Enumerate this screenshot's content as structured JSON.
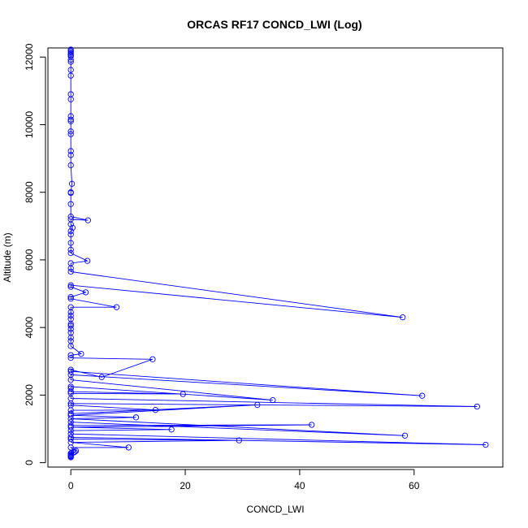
{
  "chart_data": {
    "type": "line",
    "title": "ORCAS RF17 CONCD_LWI (Log)",
    "xlabel": "CONCD_LWI",
    "ylabel": "Altitude (m)",
    "xlim": [
      -4,
      75.5
    ],
    "ylim": [
      -130,
      12270
    ],
    "xticks": [
      0,
      20,
      40,
      60
    ],
    "yticks": [
      0,
      2000,
      4000,
      6000,
      8000,
      10000,
      12000
    ],
    "grid": false,
    "legend": "none",
    "marker": "open-circle",
    "series": [
      {
        "color": "#0000ff",
        "points": [
          {
            "x": 0,
            "y": 12220
          },
          {
            "x": 0,
            "y": 12180
          },
          {
            "x": 0,
            "y": 12140
          },
          {
            "x": 0,
            "y": 12100
          },
          {
            "x": 0,
            "y": 12060
          },
          {
            "x": 0,
            "y": 12020
          },
          {
            "x": 0,
            "y": 11920
          },
          {
            "x": 0,
            "y": 11860
          },
          {
            "x": 0,
            "y": 11620
          },
          {
            "x": 0,
            "y": 11450
          },
          {
            "x": 0,
            "y": 10900
          },
          {
            "x": 0,
            "y": 10750
          },
          {
            "x": 0,
            "y": 10250
          },
          {
            "x": 0,
            "y": 10150
          },
          {
            "x": 0,
            "y": 10100
          },
          {
            "x": 0,
            "y": 9800
          },
          {
            "x": 0,
            "y": 9720
          },
          {
            "x": 0,
            "y": 9220
          },
          {
            "x": 0,
            "y": 9100
          },
          {
            "x": 0,
            "y": 8800
          },
          {
            "x": 0.2,
            "y": 8250
          },
          {
            "x": 0,
            "y": 8000
          },
          {
            "x": 0,
            "y": 7980
          },
          {
            "x": 0,
            "y": 7650
          },
          {
            "x": 0,
            "y": 7280
          },
          {
            "x": 3.0,
            "y": 7170
          },
          {
            "x": 0,
            "y": 7200
          },
          {
            "x": 0,
            "y": 7050
          },
          {
            "x": 0.3,
            "y": 6950
          },
          {
            "x": 0,
            "y": 6850
          },
          {
            "x": 0,
            "y": 6750
          },
          {
            "x": 0,
            "y": 6500
          },
          {
            "x": 0,
            "y": 6300
          },
          {
            "x": 0,
            "y": 6200
          },
          {
            "x": 2.9,
            "y": 5970
          },
          {
            "x": 0,
            "y": 5900
          },
          {
            "x": 0,
            "y": 5750
          },
          {
            "x": 0,
            "y": 5650
          },
          {
            "x": 58,
            "y": 4300
          },
          {
            "x": 0,
            "y": 5250
          },
          {
            "x": 0,
            "y": 5200
          },
          {
            "x": 2.6,
            "y": 5040
          },
          {
            "x": 0,
            "y": 4900
          },
          {
            "x": 0,
            "y": 4850
          },
          {
            "x": 8.0,
            "y": 4600
          },
          {
            "x": 0,
            "y": 4600
          },
          {
            "x": 0,
            "y": 4450
          },
          {
            "x": 0,
            "y": 4350
          },
          {
            "x": 0,
            "y": 4250
          },
          {
            "x": 0,
            "y": 4100
          },
          {
            "x": 0,
            "y": 4050
          },
          {
            "x": 0,
            "y": 3950
          },
          {
            "x": 0,
            "y": 3850
          },
          {
            "x": 0,
            "y": 3700
          },
          {
            "x": 0,
            "y": 3600
          },
          {
            "x": 0,
            "y": 3450
          },
          {
            "x": 1.8,
            "y": 3220
          },
          {
            "x": 0,
            "y": 3180
          },
          {
            "x": 0,
            "y": 3100
          },
          {
            "x": 14.3,
            "y": 3060
          },
          {
            "x": 5.4,
            "y": 2530
          },
          {
            "x": 0,
            "y": 2750
          },
          {
            "x": 0,
            "y": 2700
          },
          {
            "x": 61.4,
            "y": 1980
          },
          {
            "x": 0,
            "y": 2600
          },
          {
            "x": 0,
            "y": 2450
          },
          {
            "x": 35.3,
            "y": 1850
          },
          {
            "x": 0,
            "y": 2250
          },
          {
            "x": 0,
            "y": 2200
          },
          {
            "x": 0,
            "y": 2100
          },
          {
            "x": 19.6,
            "y": 2030
          },
          {
            "x": 0,
            "y": 2050
          },
          {
            "x": 0,
            "y": 1900
          },
          {
            "x": 71.0,
            "y": 1660
          },
          {
            "x": 0,
            "y": 1750
          },
          {
            "x": 0,
            "y": 1700
          },
          {
            "x": 14.8,
            "y": 1560
          },
          {
            "x": 0,
            "y": 1550
          },
          {
            "x": 0,
            "y": 1450
          },
          {
            "x": 32.6,
            "y": 1710
          },
          {
            "x": 0,
            "y": 1400
          },
          {
            "x": 11.4,
            "y": 1340
          },
          {
            "x": 0,
            "y": 1300
          },
          {
            "x": 58.4,
            "y": 800
          },
          {
            "x": 0,
            "y": 1200
          },
          {
            "x": 0,
            "y": 1100
          },
          {
            "x": 42.1,
            "y": 1120
          },
          {
            "x": 0,
            "y": 1050
          },
          {
            "x": 17.6,
            "y": 980
          },
          {
            "x": 0,
            "y": 950
          },
          {
            "x": 0,
            "y": 850
          },
          {
            "x": 72.5,
            "y": 530
          },
          {
            "x": 0,
            "y": 750
          },
          {
            "x": 0,
            "y": 700
          },
          {
            "x": 29.4,
            "y": 660
          },
          {
            "x": 0,
            "y": 600
          },
          {
            "x": 10.1,
            "y": 450
          },
          {
            "x": 0,
            "y": 450
          },
          {
            "x": 0.9,
            "y": 350
          },
          {
            "x": 0.5,
            "y": 300
          },
          {
            "x": 0,
            "y": 280
          },
          {
            "x": 0.7,
            "y": 320
          },
          {
            "x": 0,
            "y": 250
          },
          {
            "x": 0,
            "y": 220
          },
          {
            "x": 0,
            "y": 200
          },
          {
            "x": 0,
            "y": 180
          },
          {
            "x": 0,
            "y": 160
          }
        ]
      }
    ]
  }
}
